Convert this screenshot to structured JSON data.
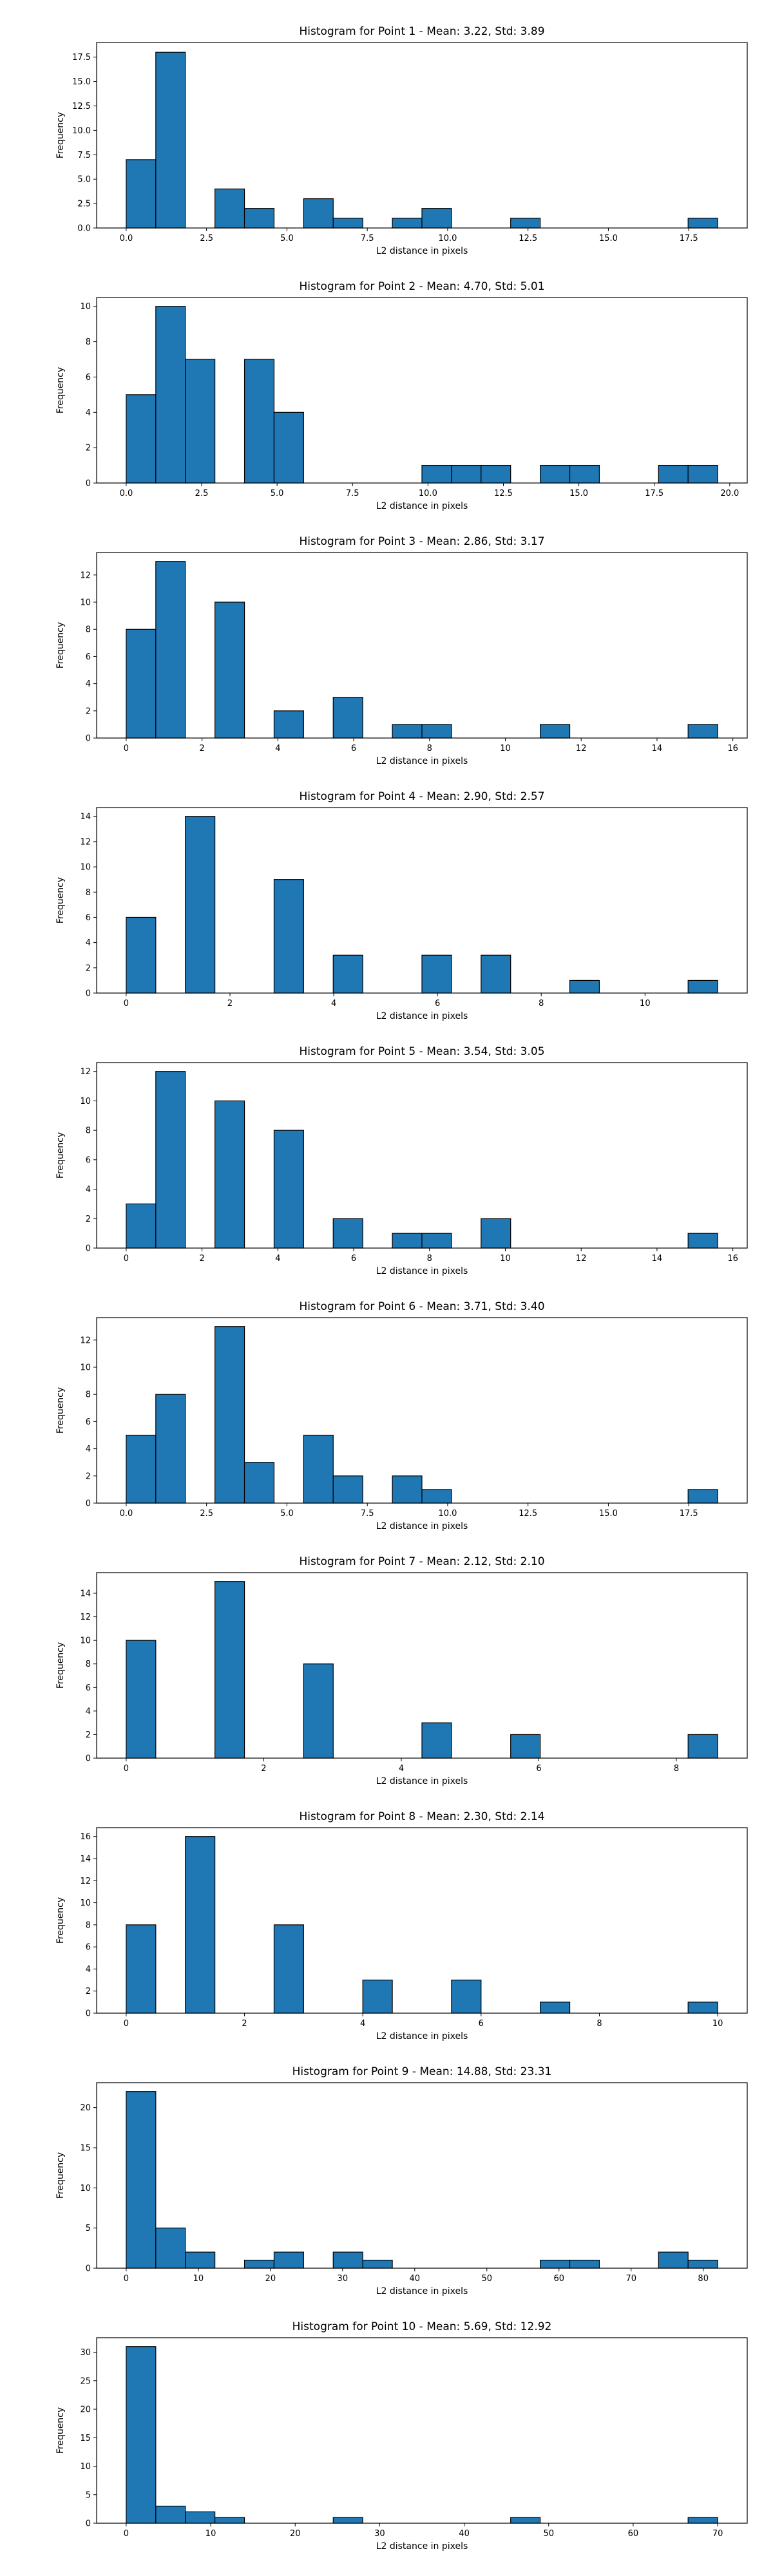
{
  "chart_data": [
    {
      "type": "bar",
      "title": "Histogram for Point 1 - Mean: 3.22, Std: 3.89",
      "xlabel": "L2 distance in pixels",
      "ylabel": "Frequency",
      "xlim": [
        -0.92,
        19.32
      ],
      "ylim": [
        0,
        19
      ],
      "xticks": [
        0.0,
        2.5,
        5.0,
        7.5,
        10.0,
        12.5,
        15.0,
        17.5
      ],
      "xtick_labels": [
        "0.0",
        "2.5",
        "5.0",
        "7.5",
        "10.0",
        "12.5",
        "15.0",
        "17.5"
      ],
      "yticks": [
        0.0,
        2.5,
        5.0,
        7.5,
        10.0,
        12.5,
        15.0,
        17.5
      ],
      "ytick_labels": [
        "0.0",
        "2.5",
        "5.0",
        "7.5",
        "10.0",
        "12.5",
        "15.0",
        "17.5"
      ],
      "bins": [
        {
          "x0": 0.0,
          "x1": 0.92,
          "count": 7
        },
        {
          "x0": 0.92,
          "x1": 1.84,
          "count": 18
        },
        {
          "x0": 2.76,
          "x1": 3.68,
          "count": 4
        },
        {
          "x0": 3.68,
          "x1": 4.6,
          "count": 2
        },
        {
          "x0": 5.52,
          "x1": 6.44,
          "count": 3
        },
        {
          "x0": 6.44,
          "x1": 7.36,
          "count": 1
        },
        {
          "x0": 8.28,
          "x1": 9.2,
          "count": 1
        },
        {
          "x0": 9.2,
          "x1": 10.12,
          "count": 2
        },
        {
          "x0": 11.96,
          "x1": 12.88,
          "count": 1
        },
        {
          "x0": 17.48,
          "x1": 18.4,
          "count": 1
        }
      ]
    },
    {
      "type": "bar",
      "title": "Histogram for Point 2 - Mean: 4.70, Std: 5.01",
      "xlabel": "L2 distance in pixels",
      "ylabel": "Frequency",
      "xlim": [
        -0.98,
        20.58
      ],
      "ylim": [
        0,
        10.5
      ],
      "xticks": [
        0.0,
        2.5,
        5.0,
        7.5,
        10.0,
        12.5,
        15.0,
        17.5,
        20.0
      ],
      "xtick_labels": [
        "0.0",
        "2.5",
        "5.0",
        "7.5",
        "10.0",
        "12.5",
        "15.0",
        "17.5",
        "20.0"
      ],
      "yticks": [
        0,
        2,
        4,
        6,
        8,
        10
      ],
      "ytick_labels": [
        "0",
        "2",
        "4",
        "6",
        "8",
        "10"
      ],
      "bins": [
        {
          "x0": 0.0,
          "x1": 0.98,
          "count": 5
        },
        {
          "x0": 0.98,
          "x1": 1.96,
          "count": 10
        },
        {
          "x0": 1.96,
          "x1": 2.94,
          "count": 7
        },
        {
          "x0": 3.92,
          "x1": 4.9,
          "count": 7
        },
        {
          "x0": 4.9,
          "x1": 5.88,
          "count": 4
        },
        {
          "x0": 9.8,
          "x1": 10.78,
          "count": 1
        },
        {
          "x0": 10.78,
          "x1": 11.76,
          "count": 1
        },
        {
          "x0": 11.76,
          "x1": 12.74,
          "count": 1
        },
        {
          "x0": 13.72,
          "x1": 14.7,
          "count": 1
        },
        {
          "x0": 14.7,
          "x1": 15.68,
          "count": 1
        },
        {
          "x0": 17.64,
          "x1": 18.62,
          "count": 1
        },
        {
          "x0": 18.62,
          "x1": 19.6,
          "count": 1
        }
      ]
    },
    {
      "type": "bar",
      "title": "Histogram for Point 3 - Mean: 2.86, Std: 3.17",
      "xlabel": "L2 distance in pixels",
      "ylabel": "Frequency",
      "xlim": [
        -0.78,
        16.38
      ],
      "ylim": [
        0,
        13.65
      ],
      "xticks": [
        0,
        2,
        4,
        6,
        8,
        10,
        12,
        14,
        16
      ],
      "xtick_labels": [
        "0",
        "2",
        "4",
        "6",
        "8",
        "10",
        "12",
        "14",
        "16"
      ],
      "yticks": [
        0,
        2,
        4,
        6,
        8,
        10,
        12
      ],
      "ytick_labels": [
        "0",
        "2",
        "4",
        "6",
        "8",
        "10",
        "12"
      ],
      "bins": [
        {
          "x0": 0.0,
          "x1": 0.78,
          "count": 8
        },
        {
          "x0": 0.78,
          "x1": 1.56,
          "count": 13
        },
        {
          "x0": 2.34,
          "x1": 3.12,
          "count": 10
        },
        {
          "x0": 3.9,
          "x1": 4.68,
          "count": 2
        },
        {
          "x0": 5.46,
          "x1": 6.24,
          "count": 3
        },
        {
          "x0": 7.02,
          "x1": 7.8,
          "count": 1
        },
        {
          "x0": 7.8,
          "x1": 8.58,
          "count": 1
        },
        {
          "x0": 10.92,
          "x1": 11.7,
          "count": 1
        },
        {
          "x0": 14.82,
          "x1": 15.6,
          "count": 1
        }
      ]
    },
    {
      "type": "bar",
      "title": "Histogram for Point 4 - Mean: 2.90, Std: 2.57",
      "xlabel": "L2 distance in pixels",
      "ylabel": "Frequency",
      "xlim": [
        -0.57,
        11.97
      ],
      "ylim": [
        0,
        14.7
      ],
      "xticks": [
        0,
        2,
        4,
        6,
        8,
        10
      ],
      "xtick_labels": [
        "0",
        "2",
        "4",
        "6",
        "8",
        "10"
      ],
      "yticks": [
        0,
        2,
        4,
        6,
        8,
        10,
        12,
        14
      ],
      "ytick_labels": [
        "0",
        "2",
        "4",
        "6",
        "8",
        "10",
        "12",
        "14"
      ],
      "bins": [
        {
          "x0": 0.0,
          "x1": 0.57,
          "count": 6
        },
        {
          "x0": 1.14,
          "x1": 1.71,
          "count": 14
        },
        {
          "x0": 2.85,
          "x1": 3.42,
          "count": 9
        },
        {
          "x0": 3.99,
          "x1": 4.56,
          "count": 3
        },
        {
          "x0": 5.7,
          "x1": 6.27,
          "count": 3
        },
        {
          "x0": 6.84,
          "x1": 7.41,
          "count": 3
        },
        {
          "x0": 8.55,
          "x1": 9.12,
          "count": 1
        },
        {
          "x0": 10.83,
          "x1": 11.4,
          "count": 1
        }
      ]
    },
    {
      "type": "bar",
      "title": "Histogram for Point 5 - Mean: 3.54, Std: 3.05",
      "xlabel": "L2 distance in pixels",
      "ylabel": "Frequency",
      "xlim": [
        -0.78,
        16.38
      ],
      "ylim": [
        0,
        12.6
      ],
      "xticks": [
        0,
        2,
        4,
        6,
        8,
        10,
        12,
        14,
        16
      ],
      "xtick_labels": [
        "0",
        "2",
        "4",
        "6",
        "8",
        "10",
        "12",
        "14",
        "16"
      ],
      "yticks": [
        0,
        2,
        4,
        6,
        8,
        10,
        12
      ],
      "ytick_labels": [
        "0",
        "2",
        "4",
        "6",
        "8",
        "10",
        "12"
      ],
      "bins": [
        {
          "x0": 0.0,
          "x1": 0.78,
          "count": 3
        },
        {
          "x0": 0.78,
          "x1": 1.56,
          "count": 12
        },
        {
          "x0": 2.34,
          "x1": 3.12,
          "count": 10
        },
        {
          "x0": 3.9,
          "x1": 4.68,
          "count": 8
        },
        {
          "x0": 5.46,
          "x1": 6.24,
          "count": 2
        },
        {
          "x0": 7.02,
          "x1": 7.8,
          "count": 1
        },
        {
          "x0": 7.8,
          "x1": 8.58,
          "count": 1
        },
        {
          "x0": 9.36,
          "x1": 10.14,
          "count": 2
        },
        {
          "x0": 14.82,
          "x1": 15.6,
          "count": 1
        }
      ]
    },
    {
      "type": "bar",
      "title": "Histogram for Point 6 - Mean: 3.71, Std: 3.40",
      "xlabel": "L2 distance in pixels",
      "ylabel": "Frequency",
      "xlim": [
        -0.92,
        19.32
      ],
      "ylim": [
        0,
        13.65
      ],
      "xticks": [
        0.0,
        2.5,
        5.0,
        7.5,
        10.0,
        12.5,
        15.0,
        17.5
      ],
      "xtick_labels": [
        "0.0",
        "2.5",
        "5.0",
        "7.5",
        "10.0",
        "12.5",
        "15.0",
        "17.5"
      ],
      "yticks": [
        0,
        2,
        4,
        6,
        8,
        10,
        12
      ],
      "ytick_labels": [
        "0",
        "2",
        "4",
        "6",
        "8",
        "10",
        "12"
      ],
      "bins": [
        {
          "x0": 0.0,
          "x1": 0.92,
          "count": 5
        },
        {
          "x0": 0.92,
          "x1": 1.84,
          "count": 8
        },
        {
          "x0": 2.76,
          "x1": 3.68,
          "count": 13
        },
        {
          "x0": 3.68,
          "x1": 4.6,
          "count": 3
        },
        {
          "x0": 5.52,
          "x1": 6.44,
          "count": 5
        },
        {
          "x0": 6.44,
          "x1": 7.36,
          "count": 2
        },
        {
          "x0": 8.28,
          "x1": 9.2,
          "count": 2
        },
        {
          "x0": 9.2,
          "x1": 10.12,
          "count": 1
        },
        {
          "x0": 17.48,
          "x1": 18.4,
          "count": 1
        }
      ]
    },
    {
      "type": "bar",
      "title": "Histogram for Point 7 - Mean: 2.12, Std: 2.10",
      "xlabel": "L2 distance in pixels",
      "ylabel": "Frequency",
      "xlim": [
        -0.43,
        9.03
      ],
      "ylim": [
        0,
        15.75
      ],
      "xticks": [
        0,
        2,
        4,
        6,
        8
      ],
      "xtick_labels": [
        "0",
        "2",
        "4",
        "6",
        "8"
      ],
      "yticks": [
        0,
        2,
        4,
        6,
        8,
        10,
        12,
        14
      ],
      "ytick_labels": [
        "0",
        "2",
        "4",
        "6",
        "8",
        "10",
        "12",
        "14"
      ],
      "bins": [
        {
          "x0": 0.0,
          "x1": 0.43,
          "count": 10
        },
        {
          "x0": 1.29,
          "x1": 1.72,
          "count": 15
        },
        {
          "x0": 2.58,
          "x1": 3.01,
          "count": 8
        },
        {
          "x0": 4.3,
          "x1": 4.73,
          "count": 3
        },
        {
          "x0": 5.59,
          "x1": 6.02,
          "count": 2
        },
        {
          "x0": 8.17,
          "x1": 8.6,
          "count": 2
        }
      ]
    },
    {
      "type": "bar",
      "title": "Histogram for Point 8 - Mean: 2.30, Std: 2.14",
      "xlabel": "L2 distance in pixels",
      "ylabel": "Frequency",
      "xlim": [
        -0.5,
        10.5
      ],
      "ylim": [
        0,
        16.8
      ],
      "xticks": [
        0,
        2,
        4,
        6,
        8,
        10
      ],
      "xtick_labels": [
        "0",
        "2",
        "4",
        "6",
        "8",
        "10"
      ],
      "yticks": [
        0,
        2,
        4,
        6,
        8,
        10,
        12,
        14,
        16
      ],
      "ytick_labels": [
        "0",
        "2",
        "4",
        "6",
        "8",
        "10",
        "12",
        "14",
        "16"
      ],
      "bins": [
        {
          "x0": 0.0,
          "x1": 0.5,
          "count": 8
        },
        {
          "x0": 1.0,
          "x1": 1.5,
          "count": 16
        },
        {
          "x0": 2.5,
          "x1": 3.0,
          "count": 8
        },
        {
          "x0": 4.0,
          "x1": 4.5,
          "count": 3
        },
        {
          "x0": 5.5,
          "x1": 6.0,
          "count": 3
        },
        {
          "x0": 7.0,
          "x1": 7.5,
          "count": 1
        },
        {
          "x0": 9.5,
          "x1": 10.0,
          "count": 1
        }
      ]
    },
    {
      "type": "bar",
      "title": "Histogram for Point 9 - Mean: 14.88, Std: 23.31",
      "xlabel": "L2 distance in pixels",
      "ylabel": "Frequency",
      "xlim": [
        -4.1,
        86.1
      ],
      "ylim": [
        0,
        23.1
      ],
      "xticks": [
        0,
        10,
        20,
        30,
        40,
        50,
        60,
        70,
        80
      ],
      "xtick_labels": [
        "0",
        "10",
        "20",
        "30",
        "40",
        "50",
        "60",
        "70",
        "80"
      ],
      "yticks": [
        0,
        5,
        10,
        15,
        20
      ],
      "ytick_labels": [
        "0",
        "5",
        "10",
        "15",
        "20"
      ],
      "bins": [
        {
          "x0": 0.0,
          "x1": 4.1,
          "count": 22
        },
        {
          "x0": 4.1,
          "x1": 8.2,
          "count": 5
        },
        {
          "x0": 8.2,
          "x1": 12.3,
          "count": 2
        },
        {
          "x0": 16.4,
          "x1": 20.5,
          "count": 1
        },
        {
          "x0": 20.5,
          "x1": 24.6,
          "count": 2
        },
        {
          "x0": 28.7,
          "x1": 32.8,
          "count": 2
        },
        {
          "x0": 32.8,
          "x1": 36.9,
          "count": 1
        },
        {
          "x0": 57.4,
          "x1": 61.5,
          "count": 1
        },
        {
          "x0": 61.5,
          "x1": 65.6,
          "count": 1
        },
        {
          "x0": 73.8,
          "x1": 77.9,
          "count": 2
        },
        {
          "x0": 77.9,
          "x1": 82.0,
          "count": 1
        }
      ]
    },
    {
      "type": "bar",
      "title": "Histogram for Point 10 - Mean: 5.69, Std: 12.92",
      "xlabel": "L2 distance in pixels",
      "ylabel": "Frequency",
      "xlim": [
        -3.5,
        73.5
      ],
      "ylim": [
        0,
        32.55
      ],
      "xticks": [
        0,
        10,
        20,
        30,
        40,
        50,
        60,
        70
      ],
      "xtick_labels": [
        "0",
        "10",
        "20",
        "30",
        "40",
        "50",
        "60",
        "70"
      ],
      "yticks": [
        0,
        5,
        10,
        15,
        20,
        25,
        30
      ],
      "ytick_labels": [
        "0",
        "5",
        "10",
        "15",
        "20",
        "25",
        "30"
      ],
      "bins": [
        {
          "x0": 0.0,
          "x1": 3.5,
          "count": 31
        },
        {
          "x0": 3.5,
          "x1": 7.0,
          "count": 3
        },
        {
          "x0": 7.0,
          "x1": 10.5,
          "count": 2
        },
        {
          "x0": 10.5,
          "x1": 14.0,
          "count": 1
        },
        {
          "x0": 24.5,
          "x1": 28.0,
          "count": 1
        },
        {
          "x0": 45.5,
          "x1": 49.0,
          "count": 1
        },
        {
          "x0": 66.5,
          "x1": 70.0,
          "count": 1
        }
      ]
    }
  ]
}
